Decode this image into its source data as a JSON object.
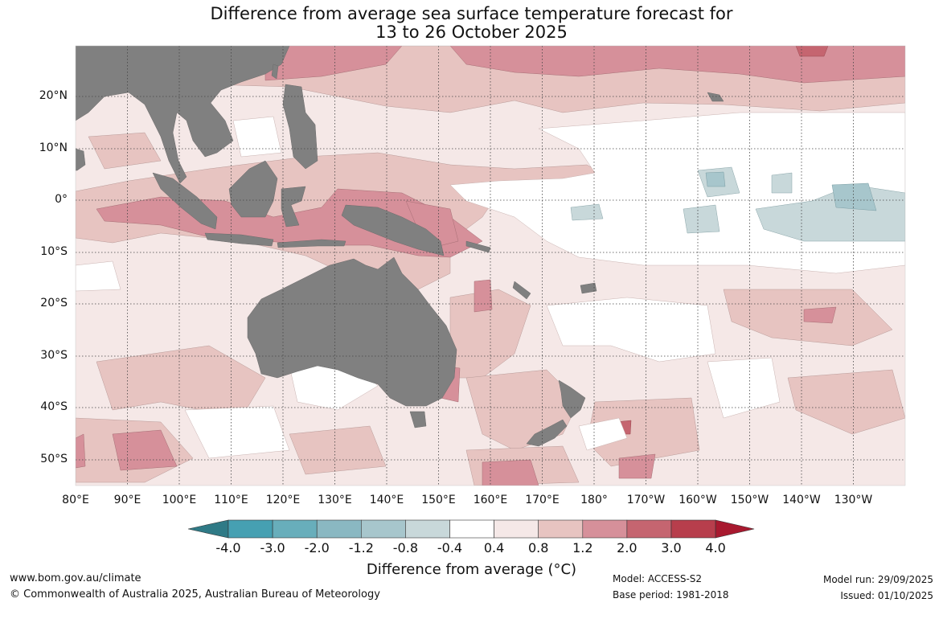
{
  "title_line1": "Difference from average sea surface temperature forecast for",
  "title_line2": "13 to 26 October 2025",
  "lat_labels": [
    "20°N",
    "10°N",
    "0°",
    "10°S",
    "20°S",
    "30°S",
    "40°S",
    "50°S"
  ],
  "lon_labels": [
    "80°E",
    "90°E",
    "100°E",
    "110°E",
    "120°E",
    "130°E",
    "140°E",
    "150°E",
    "160°E",
    "170°E",
    "180°",
    "170°W",
    "160°W",
    "150°W",
    "140°W",
    "130°W"
  ],
  "colorbar": {
    "title": "Difference from average (°C)",
    "tick_labels": [
      "-4.0",
      "-3.0",
      "-2.0",
      "-1.2",
      "-0.8",
      "-0.4",
      "0.4",
      "0.8",
      "1.2",
      "2.0",
      "3.0",
      "4.0"
    ],
    "under_color": "#2f7a86",
    "over_color": "#a8192f",
    "colors": [
      "#46a0b2",
      "#68aebb",
      "#8ab8c2",
      "#a7c6cc",
      "#c8d8da",
      "#ffffff",
      "#f5e8e7",
      "#e7c4c1",
      "#d6909a",
      "#c56570",
      "#b73e4c"
    ]
  },
  "colors": {
    "land": "#808080",
    "grid": "#444444",
    "map_background": "#f5e8e7"
  },
  "footer": {
    "url": "www.bom.gov.au/climate",
    "copyright": "© Commonwealth of Australia 2025, Australian Bureau of Meteorology",
    "model": "Model: ACCESS-S2",
    "base_period": "Base period: 1981-2018",
    "model_run": "Model run: 29/09/2025",
    "issued": "Issued: 01/10/2025"
  }
}
